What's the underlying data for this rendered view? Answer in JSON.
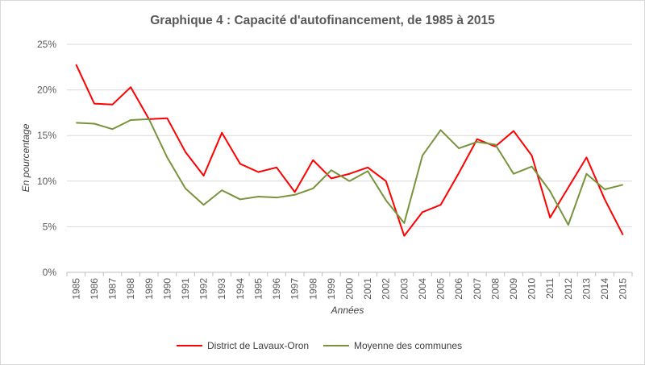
{
  "chart_data": {
    "type": "line",
    "title": "Graphique 4 : Capacité d'autofinancement, de 1985 à 2015",
    "xlabel": "Années",
    "ylabel": "En pourcentage",
    "x": [
      "1985",
      "1986",
      "1987",
      "1988",
      "1989",
      "1990",
      "1991",
      "1992",
      "1993",
      "1994",
      "1995",
      "1996",
      "1997",
      "1998",
      "1999",
      "2000",
      "2001",
      "2002",
      "2003",
      "2004",
      "2005",
      "2006",
      "2007",
      "2008",
      "2009",
      "2010",
      "2011",
      "2012",
      "2013",
      "2014",
      "2015"
    ],
    "ylim": [
      0,
      25
    ],
    "yticks": [
      0,
      5,
      10,
      15,
      20,
      25
    ],
    "ytick_labels": [
      "0%",
      "5%",
      "10%",
      "15%",
      "20%",
      "25%"
    ],
    "grid": "horizontal",
    "legend_position": "bottom",
    "series": [
      {
        "name": "District de Lavaux-Oron",
        "color": "#ff0000",
        "values": [
          22.8,
          18.5,
          18.4,
          20.3,
          16.8,
          16.9,
          13.2,
          10.6,
          15.3,
          11.9,
          11.0,
          11.5,
          8.8,
          12.3,
          10.3,
          10.8,
          11.5,
          10.0,
          4.0,
          6.6,
          7.4,
          10.9,
          14.6,
          13.8,
          15.5,
          12.8,
          6.0,
          9.3,
          12.6,
          8.0,
          4.1
        ]
      },
      {
        "name": "Moyenne des communes",
        "color": "#77933c",
        "values": [
          16.4,
          16.3,
          15.7,
          16.7,
          16.8,
          12.6,
          9.2,
          7.4,
          9.0,
          8.0,
          8.3,
          8.2,
          8.5,
          9.2,
          11.2,
          10.0,
          11.1,
          7.9,
          5.4,
          12.8,
          15.6,
          13.6,
          14.3,
          14.0,
          10.8,
          11.6,
          8.9,
          5.2,
          10.8,
          9.1,
          9.6
        ]
      }
    ]
  }
}
